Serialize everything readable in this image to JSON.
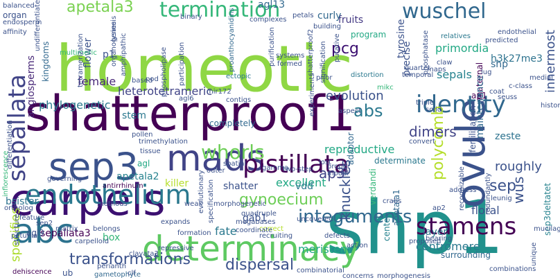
{
  "words": [
    {
      "text": "homeotic",
      "color": "#8fd744"
    },
    {
      "text": "shp1",
      "color": "#21918c"
    },
    {
      "text": "shatterproof1",
      "color": "#440154"
    },
    {
      "text": "carpels",
      "color": "#3b0f70"
    },
    {
      "text": "ovule",
      "color": "#3b528b"
    },
    {
      "text": "determinacy",
      "color": "#5ec962"
    },
    {
      "text": "abc",
      "color": "#2c728e"
    },
    {
      "text": "mads",
      "color": "#414487"
    },
    {
      "text": "sep3",
      "color": "#3b528b"
    },
    {
      "text": "endothelium",
      "color": "#2a788e"
    },
    {
      "text": "pistillata",
      "color": "#440154"
    },
    {
      "text": "sepallata",
      "color": "#414487"
    },
    {
      "text": "identity",
      "color": "#31688e"
    },
    {
      "text": "stamens",
      "color": "#440154"
    },
    {
      "text": "termination",
      "color": "#35b779"
    },
    {
      "text": "wuschel",
      "color": "#31688e"
    },
    {
      "text": "whorls",
      "color": "#6ece58"
    },
    {
      "text": "integuments",
      "color": "#31688e"
    },
    {
      "text": "transformations",
      "color": "#3b528b"
    },
    {
      "text": "dispersal",
      "color": "#3b528b"
    },
    {
      "text": "apetala3",
      "color": "#7ad151"
    },
    {
      "text": "gynoecium",
      "color": "#6ece58"
    },
    {
      "text": "abs",
      "color": "#2a788e"
    },
    {
      "text": "pcg",
      "color": "#3b0f70"
    },
    {
      "text": "polycomb",
      "color": "#b5de2b"
    },
    {
      "text": "knuckles",
      "color": "#3b528b"
    },
    {
      "text": "ap3",
      "color": "#414487"
    },
    {
      "text": "wus",
      "color": "#3b528b"
    },
    {
      "text": "sep",
      "color": "#3b528b"
    },
    {
      "text": "dimers",
      "color": "#414487"
    },
    {
      "text": "evolution",
      "color": "#3b528b"
    },
    {
      "text": "innermost",
      "color": "#3b528b"
    },
    {
      "text": "primordia",
      "color": "#22a884"
    },
    {
      "text": "heterotetrameric",
      "color": "#414487"
    },
    {
      "text": "angiosperms",
      "color": "#482878"
    },
    {
      "text": "kingdoms",
      "color": "#31688e"
    },
    {
      "text": "phylogenetic",
      "color": "#2a788e"
    },
    {
      "text": "female",
      "color": "#482878"
    },
    {
      "text": "organ",
      "color": "#3b528b"
    },
    {
      "text": "sepals",
      "color": "#26828e"
    },
    {
      "text": "sep3deltatet",
      "color": "#26828e"
    },
    {
      "text": "reproductive",
      "color": "#22a884"
    },
    {
      "text": "specifies",
      "color": "#addc30"
    },
    {
      "text": "apetala2",
      "color": "#26828e"
    },
    {
      "text": "fruits",
      "color": "#443983"
    },
    {
      "text": "program",
      "color": "#22a884"
    },
    {
      "text": "curly",
      "color": "#31688e"
    },
    {
      "text": "flower",
      "color": "#3b528b"
    },
    {
      "text": "precise",
      "color": "#3b528b"
    },
    {
      "text": "h3k27me3",
      "color": "#2c728e"
    },
    {
      "text": "shp",
      "color": "#31688e"
    },
    {
      "text": "ap1",
      "color": "#440154"
    },
    {
      "text": "maternal",
      "color": "#440154"
    },
    {
      "text": "maintenance",
      "color": "#31688e"
    },
    {
      "text": "fertilization",
      "color": "#3b528b"
    },
    {
      "text": "zeste",
      "color": "#2c728e"
    },
    {
      "text": "excellent",
      "color": "#22a884"
    },
    {
      "text": "vdd",
      "color": "#2a788e"
    },
    {
      "text": "verdandi",
      "color": "#35b779"
    },
    {
      "text": "adaptor",
      "color": "#31688e"
    },
    {
      "text": "roughly",
      "color": "#3b528b"
    },
    {
      "text": "floral",
      "color": "#3b528b"
    },
    {
      "text": "center",
      "color": "#26828e"
    },
    {
      "text": "apetala1",
      "color": "#31688e"
    },
    {
      "text": "centromere",
      "color": "#2a788e"
    },
    {
      "text": "meristem",
      "color": "#22a884"
    },
    {
      "text": "layer",
      "color": "#2a788e"
    },
    {
      "text": "sepallata3",
      "color": "#440154"
    },
    {
      "text": "gab1",
      "color": "#3b528b"
    },
    {
      "text": "fate",
      "color": "#2a788e"
    },
    {
      "text": "box",
      "color": "#35b779"
    },
    {
      "text": "agl9",
      "color": "#3b528b"
    },
    {
      "text": "killer",
      "color": "#b5de2b"
    },
    {
      "text": "bsister",
      "color": "#2c728e"
    },
    {
      "text": "shatter",
      "color": "#3b528b"
    },
    {
      "text": "tyrosine",
      "color": "#3b528b"
    },
    {
      "text": "stem",
      "color": "#2a788e"
    },
    {
      "text": "agl13",
      "color": "#31688e"
    },
    {
      "text": "p1",
      "color": "#3b528b"
    },
    {
      "text": "agl",
      "color": "#22a884"
    },
    {
      "text": "ub",
      "color": "#3b528b"
    },
    {
      "text": "determinate",
      "color": "#2a788e"
    },
    {
      "text": "surrounding",
      "color": "#31688e"
    },
    {
      "text": "petals",
      "color": "#3b528b"
    },
    {
      "text": "endothelial",
      "color": "#3b528b"
    },
    {
      "text": "completely",
      "color": "#31688e"
    },
    {
      "text": "distortion",
      "color": "#2a788e"
    },
    {
      "text": "mikc",
      "color": "#35b779"
    },
    {
      "text": "multimeric",
      "color": "#35b779"
    },
    {
      "text": "proanthocyanidins",
      "color": "#31688e"
    },
    {
      "text": "shatterproof2",
      "color": "#3b528b"
    },
    {
      "text": "ectopic",
      "color": "#2a788e"
    },
    {
      "text": "relatives",
      "color": "#2a788e"
    },
    {
      "text": "c-class",
      "color": "#3b528b"
    },
    {
      "text": "seuss",
      "color": "#3b528b"
    },
    {
      "text": "lug",
      "color": "#3b528b"
    },
    {
      "text": "coat",
      "color": "#3b528b"
    },
    {
      "text": "triple",
      "color": "#3b528b"
    },
    {
      "text": "solid",
      "color": "#3b528b"
    },
    {
      "text": "leunig",
      "color": "#3b528b"
    },
    {
      "text": "combinations",
      "color": "#3b528b"
    },
    {
      "text": "unique",
      "color": "#3b528b"
    },
    {
      "text": "proposed",
      "color": "#3b528b"
    },
    {
      "text": "carpelloid",
      "color": "#3b528b"
    },
    {
      "text": "formation",
      "color": "#3b528b"
    },
    {
      "text": "recruiting",
      "color": "#3b528b"
    },
    {
      "text": "correct",
      "color": "#b5de2b"
    },
    {
      "text": "combinatorial",
      "color": "#3b528b"
    },
    {
      "text": "clavata3",
      "color": "#3b528b"
    },
    {
      "text": "perianth",
      "color": "#3b528b"
    },
    {
      "text": "dehiscence",
      "color": "#440154"
    },
    {
      "text": "gametophyte",
      "color": "#31688e"
    },
    {
      "text": "clf",
      "color": "#3b528b"
    },
    {
      "text": "methods",
      "color": "#3b528b"
    },
    {
      "text": "belongs",
      "color": "#3b528b"
    },
    {
      "text": "matrix",
      "color": "#3b528b"
    },
    {
      "text": "sep2",
      "color": "#3b528b"
    },
    {
      "text": "petunia",
      "color": "#3b528b"
    },
    {
      "text": "ortholog",
      "color": "#3b528b"
    },
    {
      "text": "feature",
      "color": "#3b528b"
    },
    {
      "text": "structure",
      "color": "#3b528b"
    },
    {
      "text": "inflorescence",
      "color": "#35b779"
    },
    {
      "text": "differentiation",
      "color": "#3b528b"
    },
    {
      "text": "antirrhinum",
      "color": "#440154"
    },
    {
      "text": "repressive",
      "color": "#3b528b"
    },
    {
      "text": "morphogenetic",
      "color": "#3b528b"
    },
    {
      "text": "megabases",
      "color": "#3b528b"
    },
    {
      "text": "coordinate",
      "color": "#3b528b"
    },
    {
      "text": "quadruple",
      "color": "#3b528b"
    },
    {
      "text": "action",
      "color": "#3b528b"
    },
    {
      "text": "defects",
      "color": "#3b528b"
    },
    {
      "text": "uncovered",
      "color": "#3b528b"
    },
    {
      "text": "model",
      "color": "#3b528b"
    },
    {
      "text": "proper",
      "color": "#3b528b"
    },
    {
      "text": "crabs",
      "color": "#3b528b"
    },
    {
      "text": "bearing",
      "color": "#3b528b"
    },
    {
      "text": "ap2",
      "color": "#3b528b"
    },
    {
      "text": "address",
      "color": "#3b528b"
    },
    {
      "text": "recognizable",
      "color": "#3b528b"
    },
    {
      "text": "redundantly",
      "color": "#3b528b"
    },
    {
      "text": "mucilage",
      "color": "#3b528b"
    },
    {
      "text": "histone",
      "color": "#3b528b"
    },
    {
      "text": "medial",
      "color": "#3b528b"
    },
    {
      "text": "convert",
      "color": "#3b528b"
    },
    {
      "text": "spatial",
      "color": "#3b528b"
    },
    {
      "text": "outer",
      "color": "#3b528b"
    },
    {
      "text": "evolutionary",
      "color": "#3b528b"
    },
    {
      "text": "specification",
      "color": "#3b528b"
    },
    {
      "text": "weak",
      "color": "#3b528b"
    },
    {
      "text": "governing",
      "color": "#3b528b"
    },
    {
      "text": "tissue",
      "color": "#3b528b"
    },
    {
      "text": "trimethylation",
      "color": "#3b528b"
    },
    {
      "text": "pollen",
      "color": "#3b528b"
    },
    {
      "text": "agl6",
      "color": "#3b528b"
    },
    {
      "text": "mir172",
      "color": "#3b528b"
    },
    {
      "text": "contigs",
      "color": "#3b528b"
    },
    {
      "text": "aspect",
      "color": "#3b528b"
    },
    {
      "text": "gamma",
      "color": "#3b528b"
    },
    {
      "text": "two-step",
      "color": "#3b528b"
    },
    {
      "text": "lost",
      "color": "#3b528b"
    },
    {
      "text": "prior",
      "color": "#3b528b"
    },
    {
      "text": "temporal",
      "color": "#3b528b"
    },
    {
      "text": "quartet",
      "color": "#3b528b"
    },
    {
      "text": "maps",
      "color": "#3b528b"
    },
    {
      "text": "experiments",
      "color": "#3b528b"
    },
    {
      "text": "signification",
      "color": "#3b528b"
    },
    {
      "text": "claw",
      "color": "#3b528b"
    },
    {
      "text": "phosphatase",
      "color": "#3b528b"
    },
    {
      "text": "putative",
      "color": "#3b528b"
    },
    {
      "text": "purification",
      "color": "#3b528b"
    },
    {
      "text": "systems",
      "color": "#3b528b"
    },
    {
      "text": "formed",
      "color": "#3b528b"
    },
    {
      "text": "participation",
      "color": "#3b528b"
    },
    {
      "text": "phospholipase",
      "color": "#3b528b"
    },
    {
      "text": "pod",
      "color": "#3b528b"
    },
    {
      "text": "amphipathic",
      "color": "#3b528b"
    },
    {
      "text": "organogenesis",
      "color": "#3b528b"
    },
    {
      "text": "lysine",
      "color": "#3b528b"
    },
    {
      "text": "binary",
      "color": "#3b528b"
    },
    {
      "text": "tetramerization",
      "color": "#3b528b"
    },
    {
      "text": "based",
      "color": "#3b528b"
    },
    {
      "text": "building",
      "color": "#3b528b"
    },
    {
      "text": "complexes",
      "color": "#3b528b"
    },
    {
      "text": "predicted",
      "color": "#3b528b"
    },
    {
      "text": "balanced",
      "color": "#3b528b"
    },
    {
      "text": "endosperm",
      "color": "#3b528b"
    },
    {
      "text": "affinity",
      "color": "#3b528b"
    },
    {
      "text": "undifferentiated",
      "color": "#3b528b"
    },
    {
      "text": "concerns",
      "color": "#3b528b"
    },
    {
      "text": "morphogenesis",
      "color": "#3b528b"
    },
    {
      "text": "expands",
      "color": "#3b528b"
    }
  ]
}
